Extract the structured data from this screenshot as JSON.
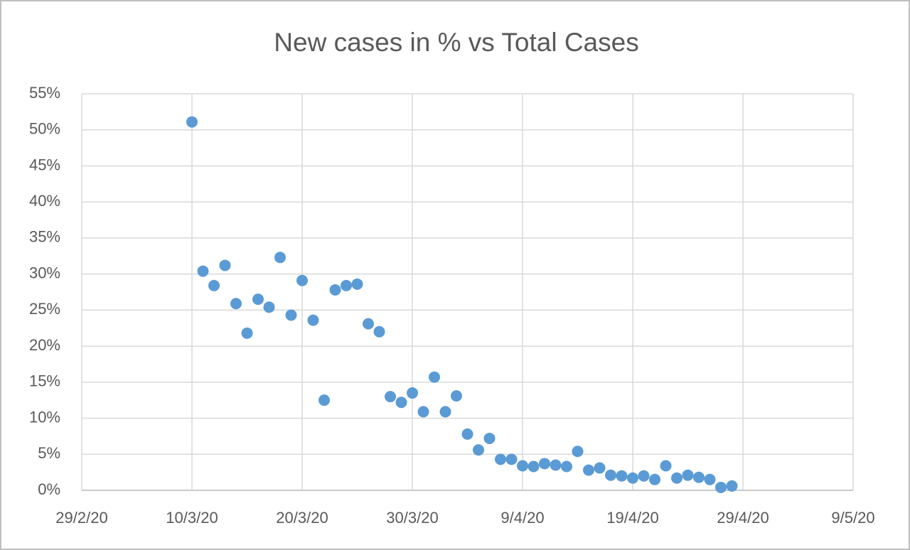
{
  "chart_data": {
    "type": "scatter",
    "title": "New cases in % vs Total Cases",
    "x": [
      "2020-03-10",
      "2020-03-11",
      "2020-03-12",
      "2020-03-13",
      "2020-03-14",
      "2020-03-15",
      "2020-03-16",
      "2020-03-17",
      "2020-03-18",
      "2020-03-19",
      "2020-03-20",
      "2020-03-21",
      "2020-03-22",
      "2020-03-23",
      "2020-03-24",
      "2020-03-25",
      "2020-03-26",
      "2020-03-27",
      "2020-03-28",
      "2020-03-29",
      "2020-03-30",
      "2020-03-31",
      "2020-04-01",
      "2020-04-02",
      "2020-04-03",
      "2020-04-04",
      "2020-04-05",
      "2020-04-06",
      "2020-04-07",
      "2020-04-08",
      "2020-04-09",
      "2020-04-10",
      "2020-04-11",
      "2020-04-12",
      "2020-04-13",
      "2020-04-14",
      "2020-04-15",
      "2020-04-16",
      "2020-04-17",
      "2020-04-18",
      "2020-04-19",
      "2020-04-20",
      "2020-04-21",
      "2020-04-22",
      "2020-04-23",
      "2020-04-24",
      "2020-04-25",
      "2020-04-26",
      "2020-04-27",
      "2020-04-28"
    ],
    "values": [
      51.1,
      30.4,
      28.4,
      31.2,
      25.9,
      21.8,
      26.5,
      25.4,
      32.3,
      24.3,
      29.1,
      23.6,
      12.5,
      27.8,
      28.4,
      28.6,
      23.1,
      22.0,
      13.0,
      12.2,
      13.5,
      10.9,
      15.7,
      10.9,
      13.1,
      7.8,
      5.6,
      7.2,
      4.3,
      4.3,
      3.4,
      3.3,
      3.7,
      3.5,
      3.3,
      5.4,
      2.8,
      3.1,
      2.1,
      2.0,
      1.7,
      2.0,
      1.5,
      3.4,
      1.7,
      2.1,
      1.8,
      1.5,
      0.4,
      0.6
    ],
    "color": "#5b9bd5",
    "xlim": [
      "2020-02-29",
      "2020-05-09"
    ],
    "xticks": [
      {
        "value": "2020-02-29",
        "label": "29/2/20"
      },
      {
        "value": "2020-03-10",
        "label": "10/3/20"
      },
      {
        "value": "2020-03-20",
        "label": "20/3/20"
      },
      {
        "value": "2020-03-30",
        "label": "30/3/20"
      },
      {
        "value": "2020-04-09",
        "label": "9/4/20"
      },
      {
        "value": "2020-04-19",
        "label": "19/4/20"
      },
      {
        "value": "2020-04-29",
        "label": "29/4/20"
      },
      {
        "value": "2020-05-09",
        "label": "9/5/20"
      }
    ],
    "ylim": [
      0,
      55
    ],
    "yticks": [
      {
        "value": 0,
        "label": "0%"
      },
      {
        "value": 5,
        "label": "5%"
      },
      {
        "value": 10,
        "label": "10%"
      },
      {
        "value": 15,
        "label": "15%"
      },
      {
        "value": 20,
        "label": "20%"
      },
      {
        "value": 25,
        "label": "25%"
      },
      {
        "value": 30,
        "label": "30%"
      },
      {
        "value": 35,
        "label": "35%"
      },
      {
        "value": 40,
        "label": "40%"
      },
      {
        "value": 45,
        "label": "45%"
      },
      {
        "value": 50,
        "label": "50%"
      },
      {
        "value": 55,
        "label": "55%"
      }
    ],
    "grid": true
  }
}
